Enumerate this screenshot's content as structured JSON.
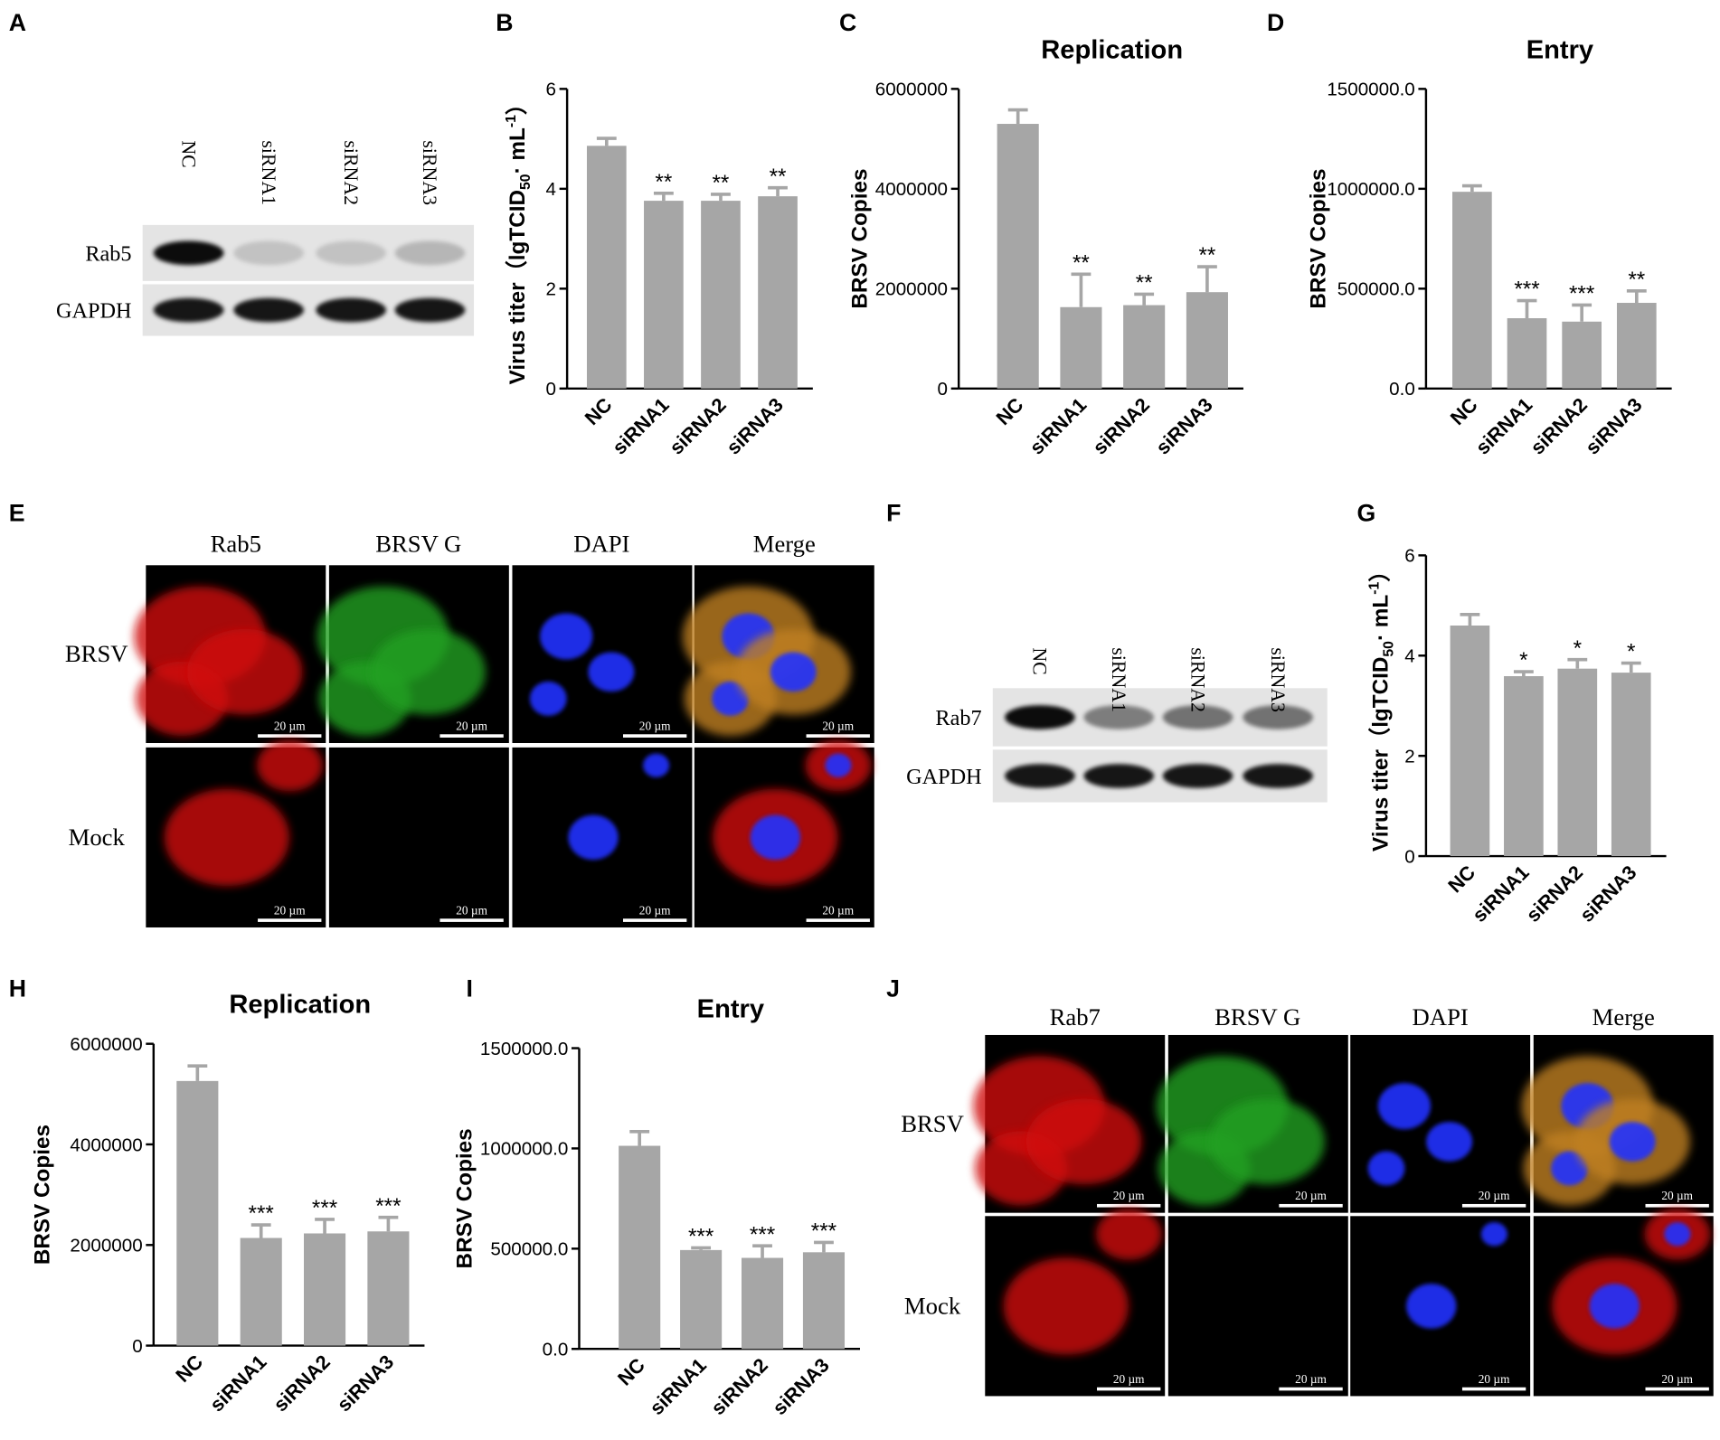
{
  "panel_labels": [
    "A",
    "B",
    "C",
    "D",
    "E",
    "F",
    "G",
    "H",
    "I",
    "J"
  ],
  "blot_A": {
    "lanes": [
      "NC",
      "siRNA1",
      "siRNA2",
      "siRNA3"
    ],
    "rows": [
      "Rab5",
      "GAPDH"
    ]
  },
  "blot_F": {
    "lanes": [
      "NC",
      "siRNA1",
      "siRNA2",
      "siRNA3"
    ],
    "rows": [
      "Rab7",
      "GAPDH"
    ]
  },
  "imaging_E": {
    "columns": [
      "Rab5",
      "BRSV G",
      "DAPI",
      "Merge"
    ],
    "rows": [
      "BRSV",
      "Mock"
    ],
    "scale_bar": "20 µm"
  },
  "imaging_J": {
    "columns": [
      "Rab7",
      "BRSV G",
      "DAPI",
      "Merge"
    ],
    "rows": [
      "BRSV",
      "Mock"
    ],
    "scale_bar": "20 µm"
  },
  "chart_data": [
    {
      "type": "bar",
      "ylabel": {
        "text": "Virus titer（lgTCID",
        "sub": "50",
        "mid": "· mL",
        "sup": "-1",
        "end": "）"
      },
      "categories": [
        "NC",
        "siRNA1",
        "siRNA2",
        "siRNA3"
      ],
      "values": [
        4.86,
        3.76,
        3.76,
        3.85
      ],
      "errors": [
        0.15,
        0.15,
        0.13,
        0.17
      ],
      "annotations": [
        null,
        "**",
        "**",
        "**"
      ],
      "color": "#a6a6a6",
      "ylim": [
        0,
        6
      ],
      "yticks": [
        0,
        2,
        4,
        6
      ]
    },
    {
      "type": "bar",
      "title": "Replication",
      "ylabel": "BRSV Copies",
      "categories": [
        "NC",
        "siRNA1",
        "siRNA2",
        "siRNA3"
      ],
      "values": [
        5300000,
        1630000,
        1670000,
        1930000
      ],
      "errors": [
        280000,
        660000,
        220000,
        510000
      ],
      "annotations": [
        null,
        "**",
        "**",
        "**"
      ],
      "color": "#a6a6a6",
      "ylim": [
        0,
        6000000
      ],
      "yticks": [
        0,
        2000000,
        4000000,
        6000000
      ]
    },
    {
      "type": "bar",
      "title": "Entry",
      "ylabel": "BRSV Copies",
      "categories": [
        "NC",
        "siRNA1",
        "siRNA2",
        "siRNA3"
      ],
      "values": [
        985000,
        352000,
        335000,
        429000
      ],
      "errors": [
        30000,
        88000,
        83000,
        60000
      ],
      "annotations": [
        null,
        "***",
        "***",
        "**"
      ],
      "color": "#a6a6a6",
      "ylim": [
        0,
        1500000
      ],
      "yticks": [
        {
          "value": 0,
          "label": "0.0"
        },
        {
          "value": 500000,
          "label": "500000.0"
        },
        {
          "value": 1000000,
          "label": "1000000.0"
        },
        {
          "value": 1500000,
          "label": "1500000.0"
        }
      ]
    },
    {
      "type": "bar",
      "ylabel": {
        "text": "Virus titer（lgTCID",
        "sub": "50",
        "mid": "· mL",
        "sup": "-1",
        "end": "）"
      },
      "categories": [
        "NC",
        "siRNA1",
        "siRNA2",
        "siRNA3"
      ],
      "values": [
        4.6,
        3.59,
        3.74,
        3.66
      ],
      "errors": [
        0.22,
        0.09,
        0.18,
        0.19
      ],
      "annotations": [
        null,
        "*",
        "*",
        "*"
      ],
      "color": "#a6a6a6",
      "ylim": [
        0,
        6
      ],
      "yticks": [
        0,
        2,
        4,
        6
      ]
    },
    {
      "type": "bar",
      "title": "Replication",
      "ylabel": "BRSV Copies",
      "categories": [
        "NC",
        "siRNA1",
        "siRNA2",
        "siRNA3"
      ],
      "values": [
        5260000,
        2140000,
        2230000,
        2270000
      ],
      "errors": [
        300000,
        260000,
        280000,
        280000
      ],
      "annotations": [
        null,
        "***",
        "***",
        "***"
      ],
      "color": "#a6a6a6",
      "ylim": [
        0,
        6000000
      ],
      "yticks": [
        0,
        2000000,
        4000000,
        6000000
      ]
    },
    {
      "type": "bar",
      "title": "Entry",
      "ylabel": "BRSV Copies",
      "categories": [
        "NC",
        "siRNA1",
        "siRNA2",
        "siRNA3"
      ],
      "values": [
        1013000,
        493000,
        454000,
        482000
      ],
      "errors": [
        71000,
        11000,
        60000,
        49000
      ],
      "annotations": [
        null,
        "***",
        "***",
        "***"
      ],
      "color": "#a6a6a6",
      "ylim": [
        0,
        1500000
      ],
      "yticks": [
        {
          "value": 0,
          "label": "0.0"
        },
        {
          "value": 500000,
          "label": "500000.0"
        },
        {
          "value": 1000000,
          "label": "1000000.0"
        },
        {
          "value": 1500000,
          "label": "1500000.0"
        }
      ]
    }
  ]
}
